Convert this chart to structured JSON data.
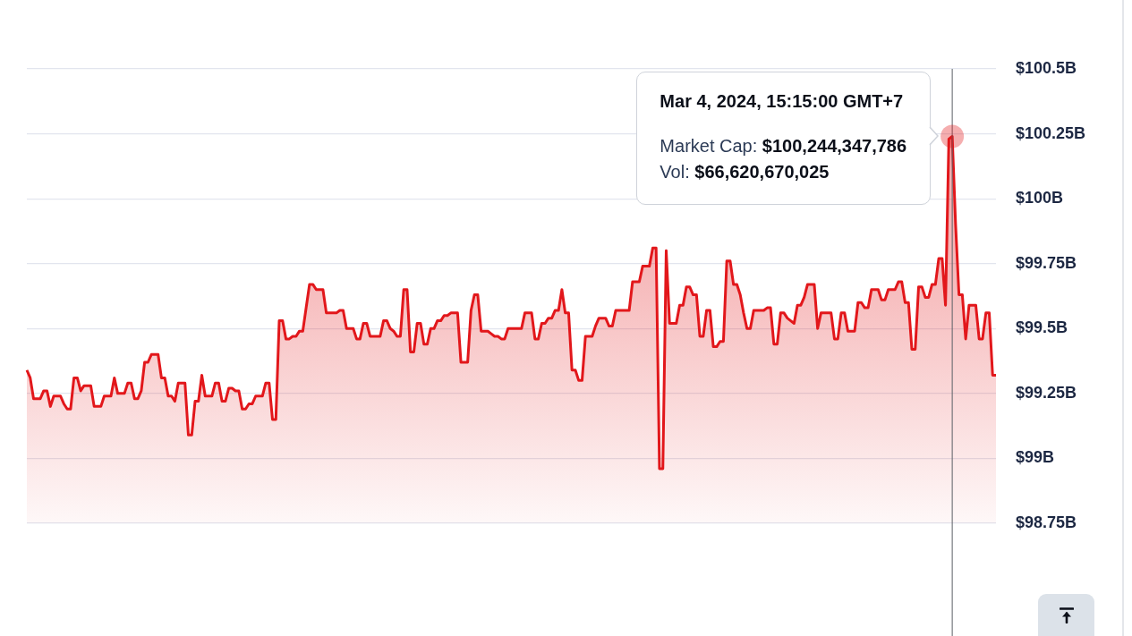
{
  "chart_data": {
    "type": "area",
    "categories": [
      null,
      null,
      null,
      null,
      null,
      null,
      null,
      null,
      null,
      null,
      null,
      null,
      null,
      null,
      null,
      null,
      null,
      null,
      null,
      null,
      null,
      null,
      null,
      null,
      null,
      null,
      null,
      null,
      null,
      null,
      null,
      null,
      null,
      null,
      null,
      null,
      null,
      null,
      null,
      null,
      null,
      null,
      null,
      null,
      null,
      null,
      null,
      null,
      null,
      null,
      null,
      null,
      null,
      null,
      null,
      null,
      null,
      null,
      null,
      null,
      null,
      null,
      null,
      null,
      null,
      null,
      null,
      null,
      null,
      null,
      null,
      null,
      null,
      null,
      null,
      null,
      null,
      null,
      null,
      null,
      null,
      null,
      null,
      null,
      null,
      null,
      null,
      null,
      null,
      null,
      null,
      null,
      null,
      null,
      null,
      null,
      null,
      null,
      null,
      null,
      null,
      null,
      null,
      null,
      null,
      null,
      null,
      null,
      null,
      null,
      null,
      null,
      null,
      null,
      null,
      null,
      null,
      null,
      null,
      null,
      null,
      null,
      null,
      null,
      null,
      null,
      null,
      null,
      null,
      null,
      null,
      null,
      null,
      null,
      null,
      null,
      null,
      null,
      null,
      null,
      null,
      null,
      null,
      null,
      null,
      null,
      null,
      null,
      null,
      null,
      null,
      null,
      null,
      null,
      null,
      null,
      null,
      null,
      null,
      null,
      null,
      null,
      null,
      null,
      null,
      null,
      null,
      null,
      null,
      null,
      null,
      null,
      null,
      null,
      null,
      null,
      null,
      null,
      null,
      null,
      null,
      null,
      null,
      null,
      null,
      null,
      null,
      null,
      null,
      null,
      null,
      null,
      null,
      null,
      null,
      null,
      null,
      null,
      null,
      null,
      null,
      null,
      null,
      null,
      null,
      null,
      null,
      null,
      null,
      null,
      null,
      null,
      null,
      null,
      null,
      null,
      null,
      null,
      null,
      null,
      null,
      null,
      null,
      null,
      null,
      null,
      null,
      null,
      null,
      null,
      null,
      null,
      null,
      null,
      null,
      null,
      null,
      null,
      null,
      null,
      null,
      null,
      null,
      null,
      null,
      null,
      null,
      null,
      null,
      null,
      null,
      null,
      null,
      null,
      null,
      null,
      null,
      null,
      null,
      null,
      null,
      null,
      null,
      null,
      null,
      null,
      null,
      null,
      null,
      null,
      null,
      null,
      null,
      null,
      null,
      null,
      null,
      null,
      null,
      null,
      null,
      null,
      null,
      null,
      null,
      null,
      null,
      null,
      null
    ],
    "values": [
      99.34,
      99.31,
      99.23,
      99.23,
      99.23,
      99.26,
      99.26,
      99.2,
      99.24,
      99.24,
      99.24,
      99.21,
      99.19,
      99.19,
      99.31,
      99.31,
      99.26,
      99.28,
      99.28,
      99.28,
      99.2,
      99.2,
      99.2,
      99.24,
      99.24,
      99.24,
      99.31,
      99.25,
      99.25,
      99.25,
      99.29,
      99.29,
      99.23,
      99.23,
      99.26,
      99.37,
      99.37,
      99.4,
      99.4,
      99.4,
      99.31,
      99.31,
      99.24,
      99.24,
      99.22,
      99.29,
      99.29,
      99.29,
      99.09,
      99.09,
      99.22,
      99.22,
      99.32,
      99.24,
      99.24,
      99.24,
      99.29,
      99.29,
      99.22,
      99.22,
      99.27,
      99.27,
      99.26,
      99.26,
      99.19,
      99.19,
      99.21,
      99.21,
      99.24,
      99.24,
      99.24,
      99.29,
      99.29,
      99.15,
      99.15,
      99.53,
      99.53,
      99.46,
      99.46,
      99.47,
      99.47,
      99.49,
      99.49,
      99.58,
      99.67,
      99.67,
      99.65,
      99.65,
      99.65,
      99.56,
      99.56,
      99.56,
      99.56,
      99.57,
      99.57,
      99.5,
      99.5,
      99.5,
      99.46,
      99.46,
      99.52,
      99.52,
      99.47,
      99.47,
      99.47,
      99.47,
      99.53,
      99.53,
      99.5,
      99.49,
      99.47,
      99.47,
      99.65,
      99.65,
      99.41,
      99.41,
      99.52,
      99.52,
      99.44,
      99.44,
      99.5,
      99.5,
      99.53,
      99.53,
      99.55,
      99.55,
      99.56,
      99.56,
      99.56,
      99.37,
      99.37,
      99.37,
      99.57,
      99.63,
      99.63,
      99.49,
      99.49,
      99.49,
      99.48,
      99.47,
      99.47,
      99.46,
      99.46,
      99.5,
      99.5,
      99.5,
      99.5,
      99.5,
      99.56,
      99.56,
      99.56,
      99.46,
      99.46,
      99.52,
      99.52,
      99.54,
      99.54,
      99.57,
      99.57,
      99.65,
      99.56,
      99.56,
      99.34,
      99.34,
      99.3,
      99.3,
      99.47,
      99.47,
      99.47,
      99.51,
      99.54,
      99.54,
      99.54,
      99.51,
      99.51,
      99.57,
      99.57,
      99.57,
      99.57,
      99.57,
      99.68,
      99.68,
      99.68,
      99.74,
      99.74,
      99.74,
      99.81,
      99.81,
      98.96,
      98.96,
      99.8,
      99.52,
      99.52,
      99.52,
      99.59,
      99.59,
      99.66,
      99.66,
      99.63,
      99.63,
      99.47,
      99.47,
      99.57,
      99.57,
      99.43,
      99.43,
      99.45,
      99.45,
      99.76,
      99.76,
      99.67,
      99.67,
      99.63,
      99.56,
      99.5,
      99.5,
      99.57,
      99.57,
      99.57,
      99.57,
      99.58,
      99.58,
      99.44,
      99.44,
      99.56,
      99.56,
      99.54,
      99.53,
      99.52,
      99.59,
      99.59,
      99.62,
      99.67,
      99.67,
      99.67,
      99.5,
      99.56,
      99.56,
      99.56,
      99.56,
      99.46,
      99.46,
      99.56,
      99.56,
      99.49,
      99.49,
      99.49,
      99.6,
      99.6,
      99.58,
      99.58,
      99.65,
      99.65,
      99.65,
      99.61,
      99.61,
      99.65,
      99.65,
      99.65,
      99.68,
      99.68,
      99.6,
      99.6,
      99.42,
      99.42,
      99.66,
      99.66,
      99.62,
      99.62,
      99.67,
      99.67,
      99.77,
      99.77,
      99.59,
      100.23,
      100.24,
      99.9,
      99.63,
      99.63,
      99.46,
      99.59,
      99.59,
      99.59,
      99.46,
      99.46,
      99.56,
      99.56,
      99.32,
      99.32
    ],
    "color": "#e2171b",
    "ylim": [
      98.75,
      100.5
    ],
    "yticks": [
      {
        "value": 98.75,
        "label": "$98.75B"
      },
      {
        "value": 99,
        "label": "$99B"
      },
      {
        "value": 99.25,
        "label": "$99.25B"
      },
      {
        "value": 99.5,
        "label": "$99.5B"
      },
      {
        "value": 99.75,
        "label": "$99.75B"
      },
      {
        "value": 100,
        "label": "$100B"
      },
      {
        "value": 100.25,
        "label": "$100.25B"
      },
      {
        "value": 100.5,
        "label": "$100.5B"
      }
    ],
    "grid": "y",
    "tick_labels": "y",
    "marker": "none",
    "annotations": [
      "Mar 4, 2024, 15:15:00 GMT+7",
      "Market Cap: $100,244,347,786",
      "Vol: $66,620,670,025"
    ]
  }
}
